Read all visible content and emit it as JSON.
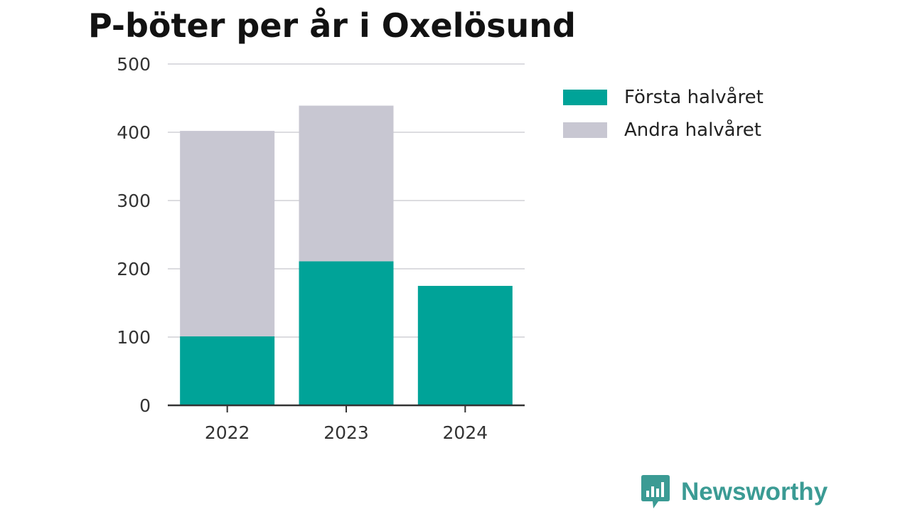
{
  "title": "P-böter per år i Oxelösund",
  "brand": {
    "name": "Newsworthy",
    "icon": "bar-chart-speech-bubble-icon",
    "color": "#3b9b94"
  },
  "legend": {
    "items": [
      {
        "label": "Första halvåret",
        "color": "#00a398"
      },
      {
        "label": "Andra halvåret",
        "color": "#c8c7d2"
      }
    ]
  },
  "chart_data": {
    "type": "bar",
    "stacked": true,
    "title": "P-böter per år i Oxelösund",
    "xlabel": "",
    "ylabel": "",
    "categories": [
      "2022",
      "2023",
      "2024"
    ],
    "series": [
      {
        "name": "Första halvåret",
        "color": "#00a398",
        "values": [
          101,
          211,
          175
        ]
      },
      {
        "name": "Andra halvåret",
        "color": "#c8c7d2",
        "values": [
          301,
          228,
          0
        ]
      }
    ],
    "ylim": [
      0,
      500
    ],
    "yticks": [
      0,
      100,
      200,
      300,
      400,
      500
    ],
    "grid": true,
    "legend_position": "right"
  }
}
